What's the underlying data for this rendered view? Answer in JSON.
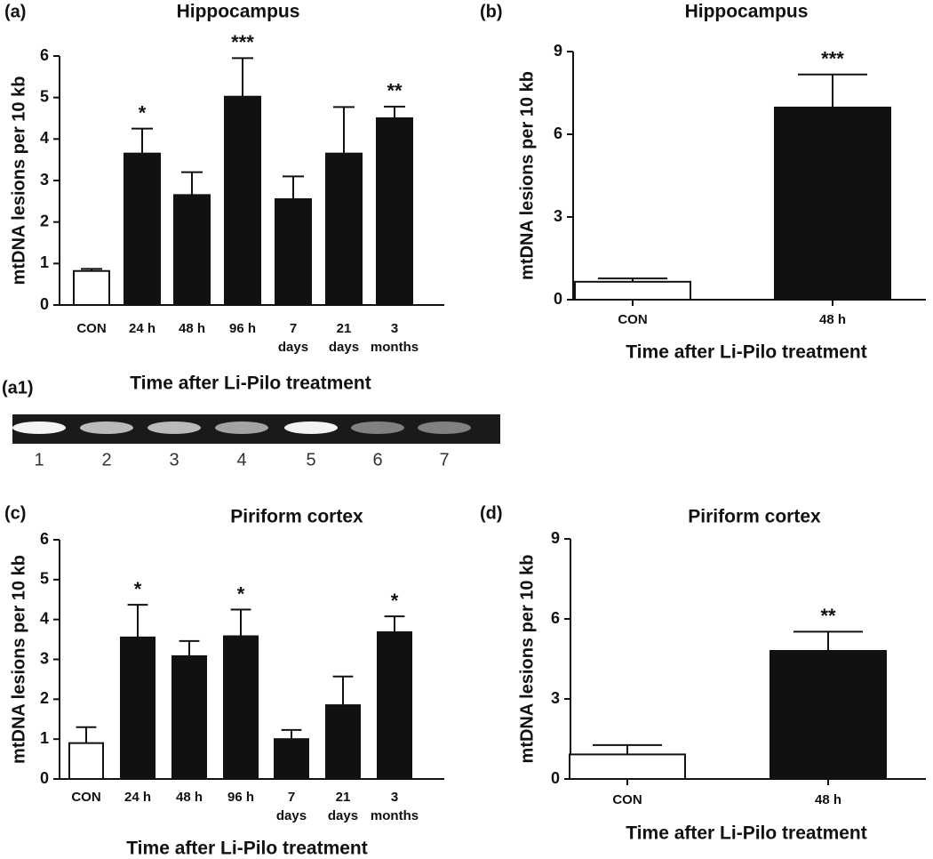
{
  "chart_data": [
    {
      "type": "bar",
      "panel": "(a)",
      "title": "Hippocampus",
      "ylabel": "mtDNA lesions per 10 kb",
      "xlabel": "Time after Li-Pilo treatment",
      "categories": [
        "CON",
        "24 h",
        "48 h",
        "96 h",
        "7\ndays",
        "21\ndays",
        "3\nmonths"
      ],
      "values": [
        0.82,
        3.65,
        2.65,
        5.02,
        2.55,
        3.65,
        4.5
      ],
      "errors": [
        0.05,
        0.6,
        0.55,
        0.93,
        0.55,
        1.12,
        0.28
      ],
      "annotations": [
        null,
        "*",
        null,
        "***",
        null,
        null,
        "**"
      ],
      "colors": [
        "#ffffff",
        "#111111",
        "#111111",
        "#111111",
        "#111111",
        "#111111",
        "#111111"
      ],
      "ylim": [
        0,
        6
      ],
      "yticks": [
        0,
        1,
        2,
        3,
        4,
        5,
        6
      ]
    },
    {
      "type": "bar",
      "panel": "(b)",
      "title": "Hippocampus",
      "ylabel": "mtDNA lesions per 10 kb",
      "xlabel": "Time after Li-Pilo treatment",
      "categories": [
        "CON",
        "48 h"
      ],
      "values": [
        0.65,
        6.97
      ],
      "errors": [
        0.12,
        1.2
      ],
      "annotations": [
        null,
        "***"
      ],
      "colors": [
        "#ffffff",
        "#111111"
      ],
      "ylim": [
        0,
        9
      ],
      "yticks": [
        0,
        3,
        6,
        9
      ]
    },
    {
      "type": "bar",
      "panel": "(c)",
      "title": "Piriform cortex",
      "ylabel": "mtDNA lesions per 10 kb",
      "xlabel": "Time after Li-Pilo treatment",
      "categories": [
        "CON",
        "24 h",
        "48 h",
        "96 h",
        "7\ndays",
        "21\ndays",
        "3\nmonths"
      ],
      "values": [
        0.9,
        3.55,
        3.08,
        3.58,
        1.0,
        1.85,
        3.68
      ],
      "errors": [
        0.4,
        0.82,
        0.38,
        0.67,
        0.23,
        0.72,
        0.4
      ],
      "annotations": [
        null,
        "*",
        null,
        "*",
        null,
        null,
        "*"
      ],
      "colors": [
        "#ffffff",
        "#111111",
        "#111111",
        "#111111",
        "#111111",
        "#111111",
        "#111111"
      ],
      "ylim": [
        0,
        6
      ],
      "yticks": [
        0,
        1,
        2,
        3,
        4,
        5,
        6
      ]
    },
    {
      "type": "bar",
      "panel": "(d)",
      "title": "Piriform cortex",
      "ylabel": "mtDNA lesions per 10 kb",
      "xlabel": "Time after Li-Pilo treatment",
      "categories": [
        "CON",
        "48 h"
      ],
      "values": [
        0.92,
        4.8
      ],
      "errors": [
        0.35,
        0.72
      ],
      "annotations": [
        null,
        "**"
      ],
      "colors": [
        "#ffffff",
        "#111111"
      ],
      "ylim": [
        0,
        9
      ],
      "yticks": [
        0,
        3,
        6,
        9
      ]
    }
  ],
  "gel": {
    "label": "(a1)",
    "lanes": [
      "1",
      "2",
      "3",
      "4",
      "5",
      "6",
      "7"
    ]
  }
}
